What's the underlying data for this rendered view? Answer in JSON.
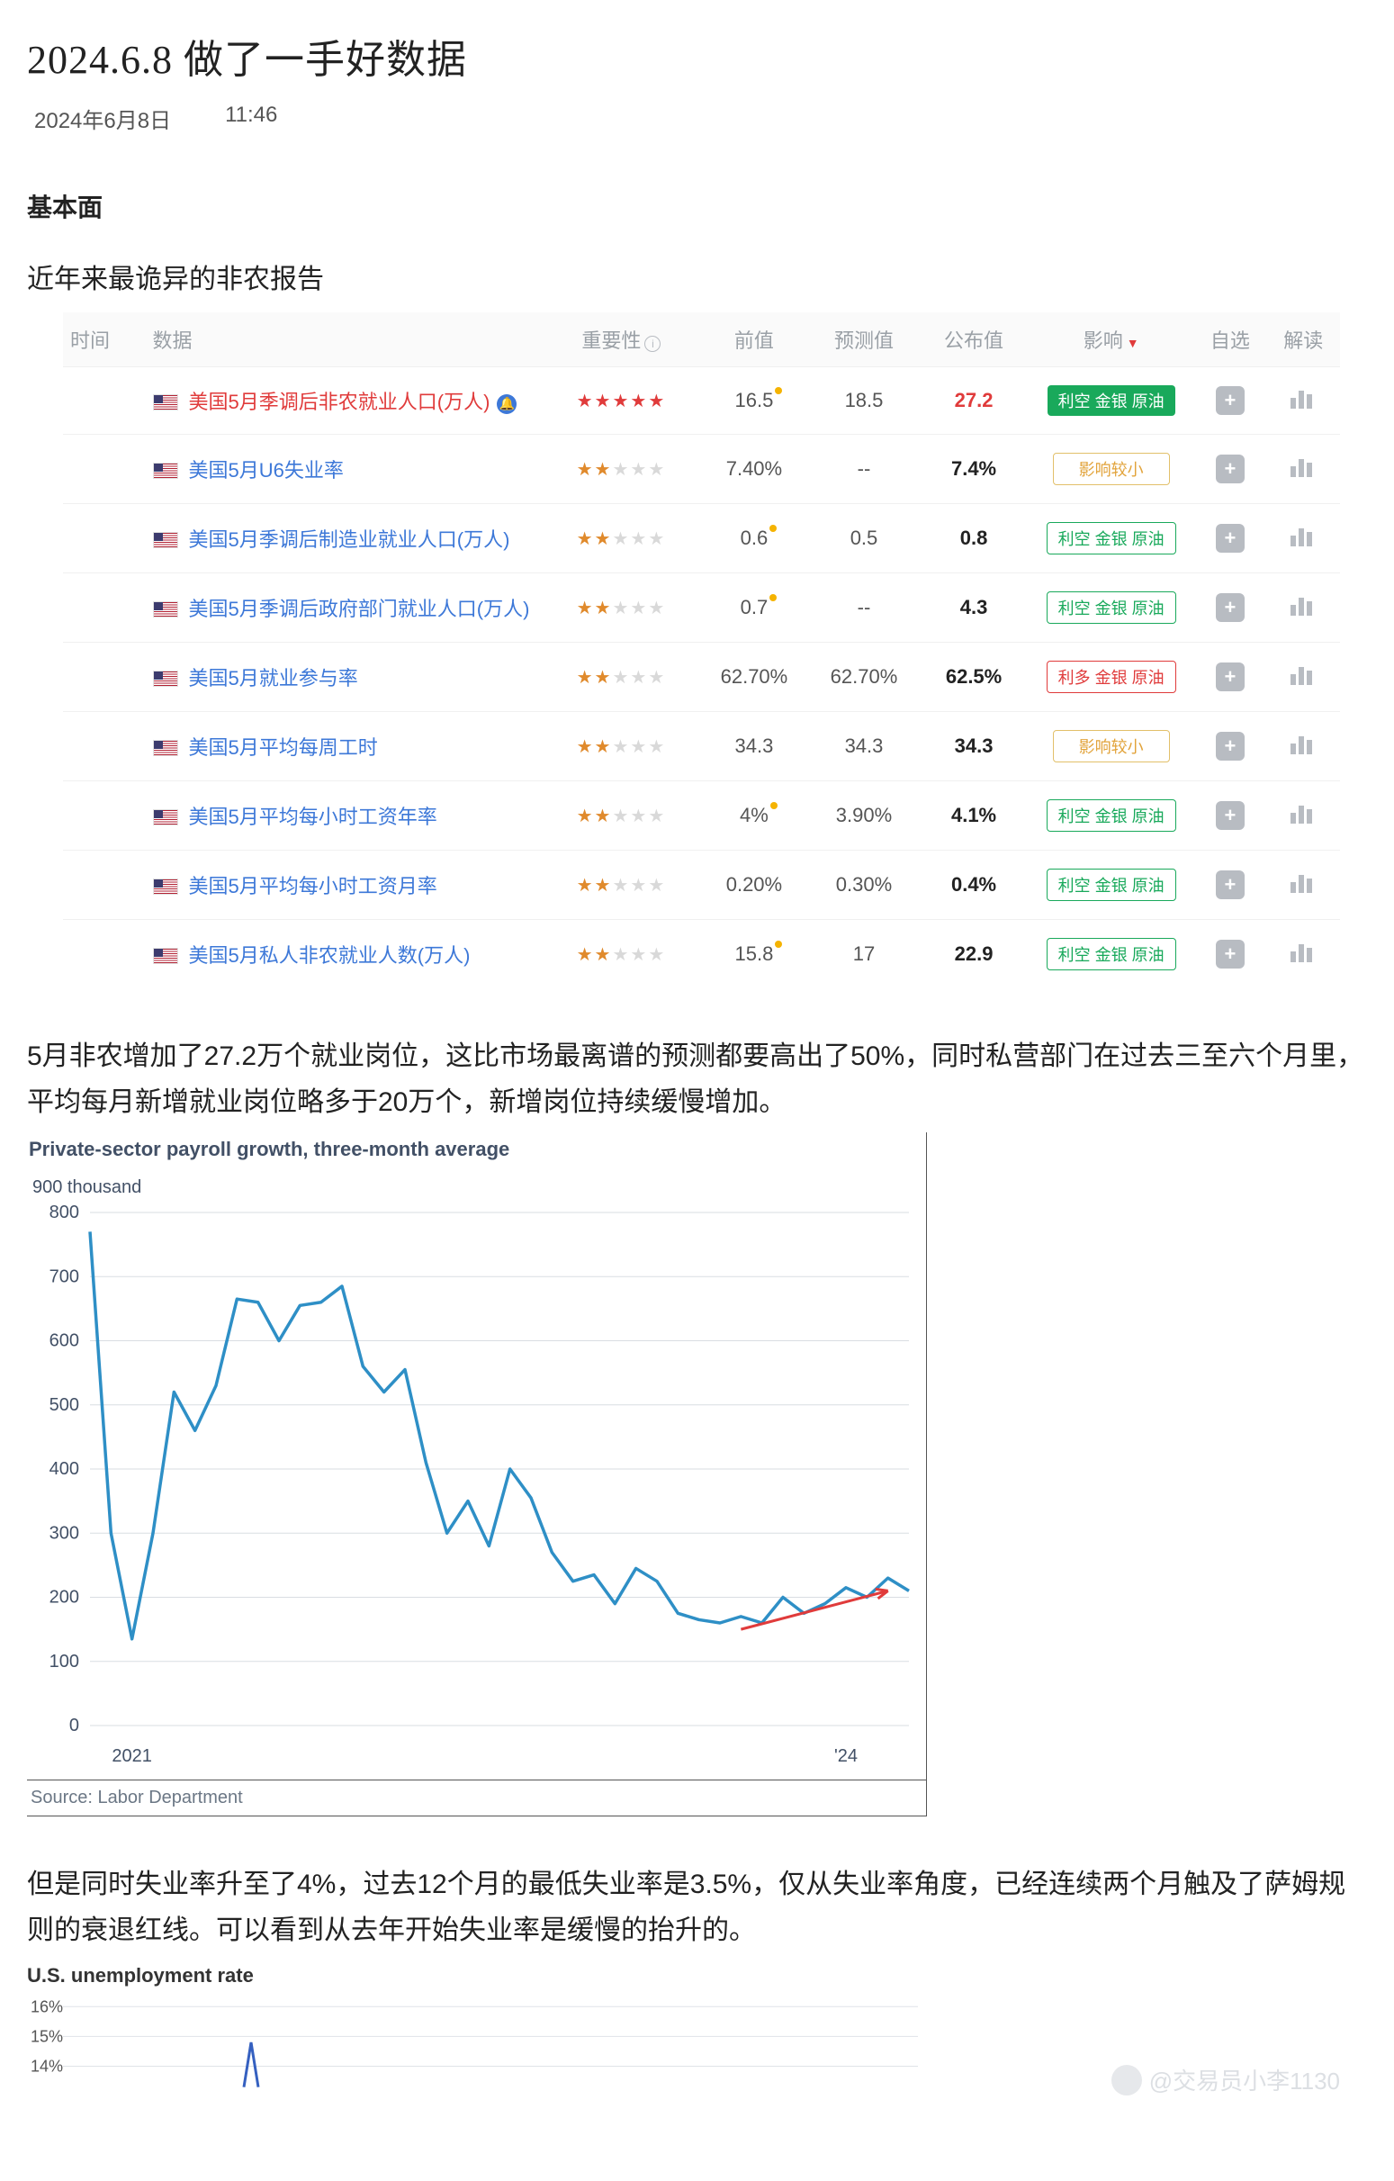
{
  "page": {
    "title": "2024.6.8 做了一手好数据",
    "date": "2024年6月8日",
    "time": "11:46",
    "section1": "基本面",
    "subhead1": "近年来最诡异的非农报告"
  },
  "table": {
    "headers": {
      "time": "时间",
      "data": "数据",
      "importance": "重要性",
      "prev": "前值",
      "forecast": "预测值",
      "published": "公布值",
      "impact": "影响",
      "fav": "自选",
      "interp": "解读"
    },
    "rows": [
      {
        "name": "美国5月季调后非农就业人口(万人)",
        "stars": 5,
        "prev": "16.5",
        "prev_note": true,
        "forecast": "18.5",
        "pub": "27.2",
        "pub_red": true,
        "tag": "利空 金银 原油",
        "tag_style": "green",
        "hl": true,
        "globe": true
      },
      {
        "name": "美国5月U6失业率",
        "stars": 2,
        "prev": "7.40%",
        "forecast": "--",
        "pub": "7.4%",
        "tag": "影响较小",
        "tag_style": "yel"
      },
      {
        "name": "美国5月季调后制造业就业人口(万人)",
        "stars": 2,
        "prev": "0.6",
        "prev_note": true,
        "forecast": "0.5",
        "pub": "0.8",
        "tag": "利空 金银 原油",
        "tag_style": "grn-o"
      },
      {
        "name": "美国5月季调后政府部门就业人口(万人)",
        "stars": 2,
        "prev": "0.7",
        "prev_note": true,
        "forecast": "--",
        "pub": "4.3",
        "tag": "利空 金银 原油",
        "tag_style": "grn-o"
      },
      {
        "name": "美国5月就业参与率",
        "stars": 2,
        "prev": "62.70%",
        "forecast": "62.70%",
        "pub": "62.5%",
        "tag": "利多 金银 原油",
        "tag_style": "red-o"
      },
      {
        "name": "美国5月平均每周工时",
        "stars": 2,
        "prev": "34.3",
        "forecast": "34.3",
        "pub": "34.3",
        "tag": "影响较小",
        "tag_style": "yel"
      },
      {
        "name": "美国5月平均每小时工资年率",
        "stars": 2,
        "prev": "4%",
        "prev_note": true,
        "forecast": "3.90%",
        "pub": "4.1%",
        "tag": "利空 金银 原油",
        "tag_style": "grn-o"
      },
      {
        "name": "美国5月平均每小时工资月率",
        "stars": 2,
        "prev": "0.20%",
        "forecast": "0.30%",
        "pub": "0.4%",
        "tag": "利空 金银 原油",
        "tag_style": "grn-o"
      },
      {
        "name": "美国5月私人非农就业人数(万人)",
        "stars": 2,
        "prev": "15.8",
        "prev_note": true,
        "forecast": "17",
        "pub": "22.9",
        "tag": "利空 金银 原油",
        "tag_style": "grn-o"
      }
    ]
  },
  "para1": "5月非农增加了27.2万个就业岗位，这比市场最离谱的预测都要高出了50%，同时私营部门在过去三至六个月里，平均每月新增就业岗位略多于20万个，新增岗位持续缓慢增加。",
  "chart1": {
    "title": "Private-sector payroll growth, three-month average",
    "sub": "900 thousand",
    "source": "Source: Labor Department",
    "y_ticks": [
      0,
      100,
      200,
      300,
      400,
      500,
      600,
      700,
      800
    ],
    "x_labels": {
      "2021": "2021",
      "2024": "'24"
    },
    "line_color": "#2e8fc6",
    "arrow_color": "#e03b3b",
    "grid_color": "#d9dde2",
    "series": [
      770,
      300,
      135,
      300,
      520,
      460,
      530,
      665,
      660,
      600,
      655,
      660,
      685,
      560,
      520,
      555,
      410,
      300,
      350,
      280,
      400,
      355,
      270,
      225,
      235,
      190,
      245,
      225,
      175,
      165,
      160,
      170,
      160,
      200,
      175,
      190,
      215,
      200,
      230,
      210
    ]
  },
  "para2": "但是同时失业率升至了4%，过去12个月的最低失业率是3.5%，仅从失业率角度，已经连续两个月触及了萨姆规则的衰退红线。可以看到从去年开始失业率是缓慢的抬升的。",
  "chart2": {
    "title": "U.S. unemployment rate",
    "y_ticks": [
      14,
      15,
      16
    ],
    "line_color": "#3560c0",
    "grid_color": "#e0e3e8",
    "spike_x": 0.22,
    "spike_top": 14.8,
    "baseline": 13.3
  },
  "watermark": "@交易员小李1130"
}
